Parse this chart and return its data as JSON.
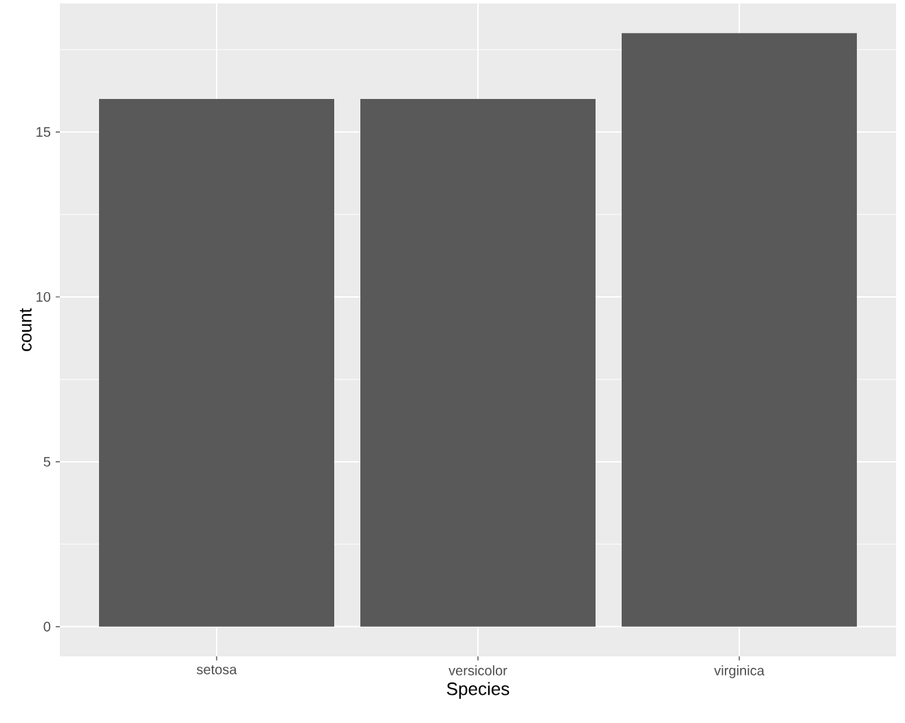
{
  "chart_data": {
    "type": "bar",
    "xlabel": "Species",
    "ylabel": "count",
    "categories": [
      "setosa",
      "versicolor",
      "virginica"
    ],
    "values": [
      16,
      16,
      18
    ],
    "color": "#595959",
    "ylim": [
      -0.9,
      18.9
    ],
    "yticks": [
      0,
      5,
      10,
      15
    ],
    "grid": true
  }
}
